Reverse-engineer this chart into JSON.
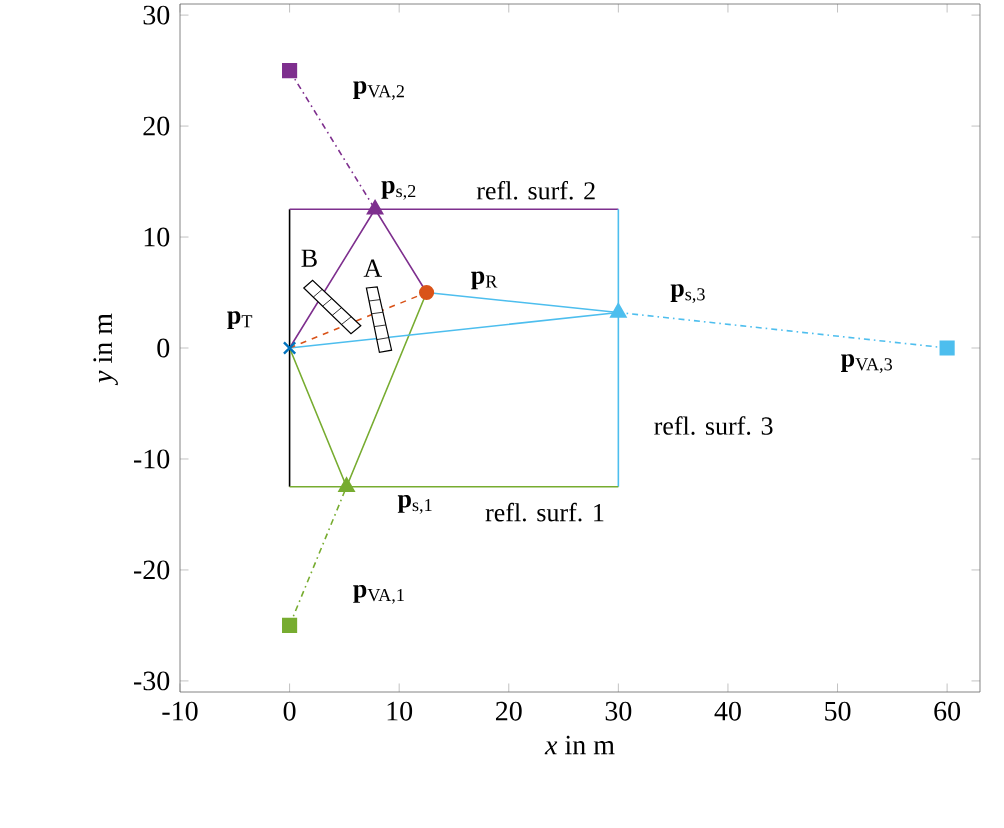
{
  "chart_data": {
    "type": "line",
    "xlabel": "*x* in m",
    "ylabel": "*y* in m",
    "xlim": [
      -10,
      63
    ],
    "ylim": [
      -31,
      31
    ],
    "xticks": [
      -10,
      0,
      10,
      20,
      30,
      40,
      50,
      60
    ],
    "yticks": [
      -30,
      -20,
      -10,
      0,
      10,
      20,
      30
    ],
    "grid": false,
    "series": [
      {
        "color": "#000000",
        "x": [
          0,
          0
        ],
        "values": [
          -12.5,
          12.5
        ]
      },
      {
        "color": "#7e2f8e",
        "x": [
          0,
          30
        ],
        "values": [
          12.5,
          12.5
        ]
      },
      {
        "color": "#4dbeee",
        "x": [
          30,
          30
        ],
        "values": [
          -12.5,
          12.5
        ]
      },
      {
        "color": "#77ac30",
        "x": [
          0,
          30
        ],
        "values": [
          -12.5,
          -12.5
        ]
      },
      {
        "color": "#77ac30",
        "x": [
          0,
          5.2,
          12.5
        ],
        "values": [
          0,
          -12.5,
          5
        ]
      },
      {
        "color": "#7e2f8e",
        "x": [
          0,
          7.8,
          12.5
        ],
        "values": [
          0,
          12.5,
          5
        ]
      },
      {
        "color": "#4dbeee",
        "x": [
          0,
          30,
          12.5
        ],
        "values": [
          0,
          3.2,
          5
        ]
      },
      {
        "color": "#d95319",
        "line_style": "dashed",
        "x": [
          0,
          12.5
        ],
        "values": [
          0,
          5
        ]
      },
      {
        "color": "#77ac30",
        "line_style": "dashdot",
        "x": [
          0,
          5.2
        ],
        "values": [
          -25,
          -12.5
        ]
      },
      {
        "color": "#7e2f8e",
        "line_style": "dashdot",
        "x": [
          0,
          7.8
        ],
        "values": [
          25,
          12.5
        ]
      },
      {
        "color": "#4dbeee",
        "line_style": "dashdot",
        "x": [
          60,
          30
        ],
        "values": [
          0,
          3.2
        ]
      },
      {
        "type": "scatter",
        "marker": "cross",
        "color": "#0072bd",
        "x": [
          0
        ],
        "values": [
          0
        ]
      },
      {
        "type": "scatter",
        "marker": "circle",
        "color": "#d95319",
        "x": [
          12.5
        ],
        "values": [
          5
        ]
      },
      {
        "type": "scatter",
        "marker": "triangle",
        "color": "#77ac30",
        "x": [
          5.2
        ],
        "values": [
          -12.5
        ]
      },
      {
        "type": "scatter",
        "marker": "triangle",
        "color": "#7e2f8e",
        "x": [
          7.8
        ],
        "values": [
          12.5
        ]
      },
      {
        "type": "scatter",
        "marker": "triangle",
        "color": "#4dbeee",
        "x": [
          30
        ],
        "values": [
          3.2
        ]
      },
      {
        "type": "scatter",
        "marker": "square",
        "color": "#77ac30",
        "x": [
          0
        ],
        "values": [
          -25
        ]
      },
      {
        "type": "scatter",
        "marker": "square",
        "color": "#7e2f8e",
        "x": [
          0
        ],
        "values": [
          25
        ]
      },
      {
        "type": "scatter",
        "marker": "square",
        "color": "#4dbeee",
        "x": [
          60
        ],
        "values": [
          0
        ]
      }
    ],
    "annotations": [
      "**p**$_{T}$",
      "**p**$_{R}$",
      "**p**$_{s,2}$",
      "refl. surf. 2",
      "**p**$_{s,3}$",
      "refl. surf. 3",
      "**p**$_{s,1}$",
      "refl. surf. 1",
      "**p**$_{VA,1}$",
      "**p**$_{VA,2}$",
      "**p**$_{VA,3}$",
      "A",
      "B"
    ]
  }
}
